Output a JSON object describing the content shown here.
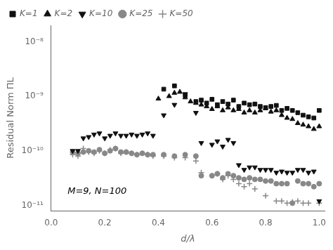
{
  "chart_data": {
    "type": "scatter",
    "xlabel": "d/λ",
    "ylabel": "Residual Norm ΠL",
    "annotation": "M=9, N=100",
    "log": "y",
    "grid": false,
    "legend": "upper left",
    "xlim": [
      0,
      1.02
    ],
    "ylim": [
      8e-12,
      2e-08
    ],
    "xticks": [
      {
        "value": 0,
        "label": "0.0"
      },
      0.2,
      0.4,
      0.6,
      0.8,
      {
        "value": 1,
        "label": "1.0"
      }
    ],
    "yticks": [
      {
        "value": 1e-11,
        "label": "10⁻¹¹"
      },
      {
        "value": 1e-10,
        "label": "10⁻¹⁰"
      },
      {
        "value": 1e-09,
        "label": "10⁻⁹"
      },
      {
        "value": 1e-08,
        "label": "10⁻⁸"
      }
    ],
    "series": [
      {
        "name": "K=1",
        "color": "#111111",
        "marker": "square",
        "x": [
          0.42,
          0.46,
          0.5,
          0.54,
          0.56,
          0.58,
          0.6,
          0.62,
          0.64,
          0.66,
          0.68,
          0.7,
          0.72,
          0.74,
          0.76,
          0.78,
          0.8,
          0.82,
          0.84,
          0.86,
          0.88,
          0.9,
          0.92,
          0.94,
          0.96,
          0.98,
          1.0
        ],
        "values": [
          1.35e-09,
          1.55e-09,
          1.05e-09,
          8e-10,
          8.5e-10,
          7.5e-10,
          8.8e-10,
          7e-10,
          8e-10,
          7.2e-10,
          8.5e-10,
          6.5e-10,
          7.5e-10,
          7e-10,
          7.2e-10,
          6.5e-10,
          6.2e-10,
          6.5e-10,
          6.8e-10,
          5.5e-10,
          6e-10,
          5.5e-10,
          5e-10,
          4.5e-10,
          4.2e-10,
          4e-10,
          5.5e-10
        ]
      },
      {
        "name": "K=2",
        "color": "#111111",
        "marker": "triangle_up",
        "x": [
          0.4,
          0.44,
          0.46,
          0.48,
          0.5,
          0.52,
          0.54,
          0.56,
          0.58,
          0.6,
          0.62,
          0.64,
          0.66,
          0.68,
          0.7,
          0.72,
          0.74,
          0.76,
          0.78,
          0.8,
          0.82,
          0.84,
          0.86,
          0.88,
          0.9,
          0.92,
          0.94,
          0.96,
          0.98,
          1.0
        ],
        "values": [
          9e-10,
          1e-09,
          1.15e-09,
          1.2e-09,
          9.5e-10,
          8e-10,
          7.5e-10,
          7e-10,
          6.5e-10,
          5.8e-10,
          6.5e-10,
          5.5e-10,
          6.2e-10,
          5.5e-10,
          5.8e-10,
          5e-10,
          5.5e-10,
          5e-10,
          5.5e-10,
          6e-10,
          5.2e-10,
          5.5e-10,
          4.5e-10,
          4e-10,
          3.8e-10,
          3.2e-10,
          3e-10,
          2.8e-10,
          2.5e-10,
          2.8e-10
        ]
      },
      {
        "name": "K=10",
        "color": "#111111",
        "marker": "triangle_down",
        "x": [
          0.08,
          0.1,
          0.12,
          0.14,
          0.16,
          0.18,
          0.2,
          0.22,
          0.24,
          0.26,
          0.28,
          0.3,
          0.32,
          0.34,
          0.36,
          0.38,
          0.42,
          0.46,
          0.5,
          0.54,
          0.56,
          0.6,
          0.62,
          0.64,
          0.66,
          0.68,
          0.7,
          0.72,
          0.74,
          0.76,
          0.78,
          0.8,
          0.82,
          0.84,
          0.86,
          0.88,
          0.9,
          0.92,
          0.94,
          0.96,
          0.98,
          1.0
        ],
        "values": [
          1e-10,
          1e-10,
          1.7e-10,
          1.8e-10,
          2e-10,
          2.1e-10,
          1.7e-10,
          1.9e-10,
          2.1e-10,
          1.9e-10,
          1.9e-10,
          2e-10,
          1.9e-10,
          2e-10,
          2.1e-10,
          1.9e-10,
          4.5e-10,
          7e-10,
          1.1e-09,
          5e-10,
          1.4e-10,
          1.3e-10,
          1.5e-10,
          1.2e-10,
          1.6e-10,
          1.4e-10,
          5.5e-11,
          4.5e-11,
          5e-11,
          5e-11,
          4.5e-11,
          4.5e-11,
          4.5e-11,
          4e-11,
          4.2e-11,
          4e-11,
          4e-11,
          4.5e-11,
          4.5e-11,
          4e-11,
          4.2e-11,
          1.2e-11
        ]
      },
      {
        "name": "K=25",
        "color": "#888888",
        "marker": "circle",
        "x": [
          0.08,
          0.1,
          0.12,
          0.14,
          0.16,
          0.18,
          0.2,
          0.22,
          0.24,
          0.26,
          0.28,
          0.3,
          0.32,
          0.34,
          0.36,
          0.38,
          0.42,
          0.46,
          0.5,
          0.54,
          0.56,
          0.6,
          0.62,
          0.64,
          0.66,
          0.68,
          0.7,
          0.72,
          0.74,
          0.76,
          0.78,
          0.8,
          0.82,
          0.84,
          0.86,
          0.88,
          0.9,
          0.92,
          0.94,
          0.96,
          0.98,
          1.0
        ],
        "values": [
          9.5e-11,
          9e-11,
          9.5e-11,
          1e-10,
          9.5e-11,
          1.05e-10,
          9e-11,
          1e-10,
          1.1e-10,
          9.5e-11,
          9.5e-11,
          9e-11,
          8.5e-11,
          9e-11,
          8.5e-11,
          8.5e-11,
          8.5e-11,
          8e-11,
          8.5e-11,
          8e-11,
          3.5e-11,
          3.5e-11,
          3.8e-11,
          3.2e-11,
          3.8e-11,
          3.5e-11,
          3.2e-11,
          3e-11,
          3.2e-11,
          3e-11,
          3e-11,
          2.8e-11,
          2.8e-11,
          2.5e-11,
          2.5e-11,
          2.5e-11,
          1.1e-11,
          2.8e-11,
          2.5e-11,
          2.5e-11,
          2.2e-11,
          2.5e-11
        ]
      },
      {
        "name": "K=50",
        "color": "#888888",
        "marker": "plus",
        "x": [
          0.08,
          0.1,
          0.12,
          0.14,
          0.16,
          0.18,
          0.2,
          0.22,
          0.24,
          0.26,
          0.28,
          0.3,
          0.32,
          0.34,
          0.36,
          0.38,
          0.42,
          0.46,
          0.5,
          0.54,
          0.56,
          0.6,
          0.62,
          0.64,
          0.66,
          0.68,
          0.7,
          0.72,
          0.74,
          0.76,
          0.8,
          0.84,
          0.86,
          0.88,
          0.9,
          0.92,
          0.94,
          0.96,
          1.0
        ],
        "values": [
          8.5e-11,
          8e-11,
          1.1e-10,
          9.5e-11,
          9e-11,
          1e-10,
          9e-11,
          1.05e-10,
          1.1e-10,
          9e-11,
          9.5e-11,
          9e-11,
          8.5e-11,
          9e-11,
          8.5e-11,
          8e-11,
          8e-11,
          7.5e-11,
          7.5e-11,
          6.5e-11,
          4e-11,
          3.5e-11,
          3.8e-11,
          3e-11,
          3.5e-11,
          3e-11,
          2.5e-11,
          2.2e-11,
          2.5e-11,
          2e-11,
          1.5e-11,
          1.2e-11,
          1.2e-11,
          1.1e-11,
          1.15e-11,
          1.2e-11,
          1.1e-11,
          1.1e-11,
          1.1e-11
        ]
      }
    ]
  }
}
